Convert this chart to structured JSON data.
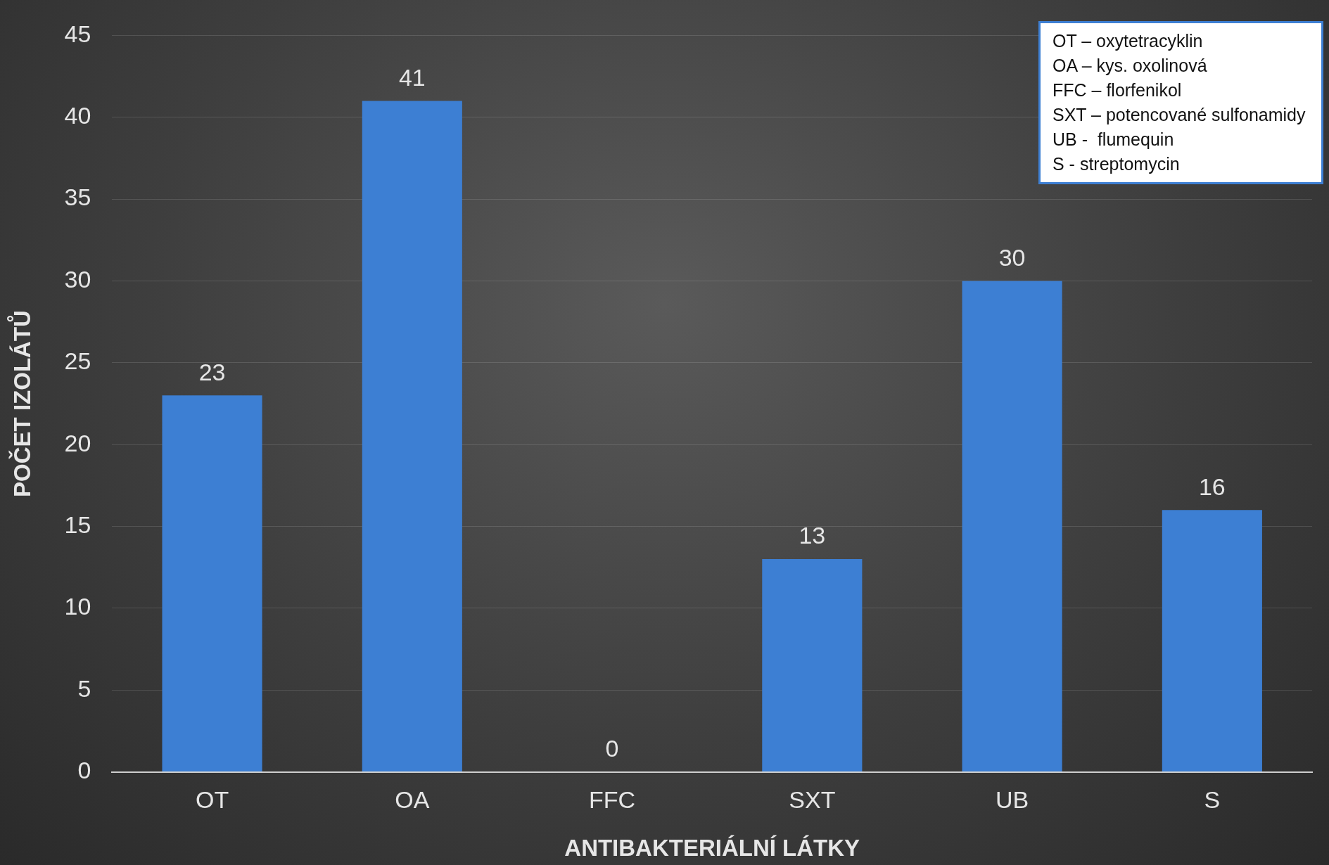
{
  "chart_data": {
    "type": "bar",
    "xlabel": "ANTIBAKTERIÁLNÍ LÁTKY",
    "ylabel": "POČET IZOLÁTŮ",
    "categories": [
      "OT",
      "OA",
      "FFC",
      "SXT",
      "UB",
      "S"
    ],
    "values": [
      23,
      41,
      0,
      13,
      30,
      16
    ],
    "color": "#3d7fd3",
    "ylim": [
      0,
      45
    ],
    "yticks": [
      0,
      5,
      10,
      15,
      20,
      25,
      30,
      35,
      40,
      45
    ],
    "grid": "y",
    "data_labels": true,
    "annotations": [
      "OT – oxytetracyklin",
      "OA – kys. oxolinová",
      "FFC – florfenikol",
      "SXT – potencované sulfonamidy",
      "UB -  flumequin",
      "S - streptomycin"
    ]
  }
}
